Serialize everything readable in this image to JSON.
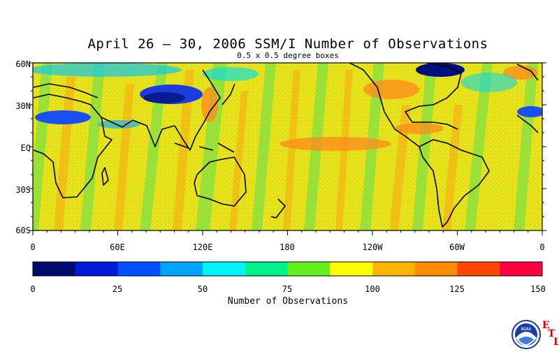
{
  "title": "April 26 – 30, 2006 SSM/I Number of Observations",
  "subtitle": "0.5 x 0.5 degree boxes",
  "map": {
    "lat_labels": [
      "60N",
      "30N",
      "EQ",
      "30S",
      "60S"
    ],
    "lon_labels": [
      "0",
      "60E",
      "120E",
      "180",
      "120W",
      "60W",
      "0"
    ]
  },
  "colorbar": {
    "label": "Number of Observations",
    "ticks": [
      "0",
      "25",
      "50",
      "75",
      "100",
      "125",
      "150"
    ],
    "colors": [
      "#000a6e",
      "#0018d8",
      "#0050ff",
      "#00a4ff",
      "#00f4ff",
      "#00f08c",
      "#64f01c",
      "#ffff00",
      "#ffb400",
      "#ff8c00",
      "#ff4600",
      "#ff0040"
    ]
  },
  "logo": {
    "text": "NOAA",
    "letters": [
      "E",
      "T",
      "L"
    ]
  }
}
